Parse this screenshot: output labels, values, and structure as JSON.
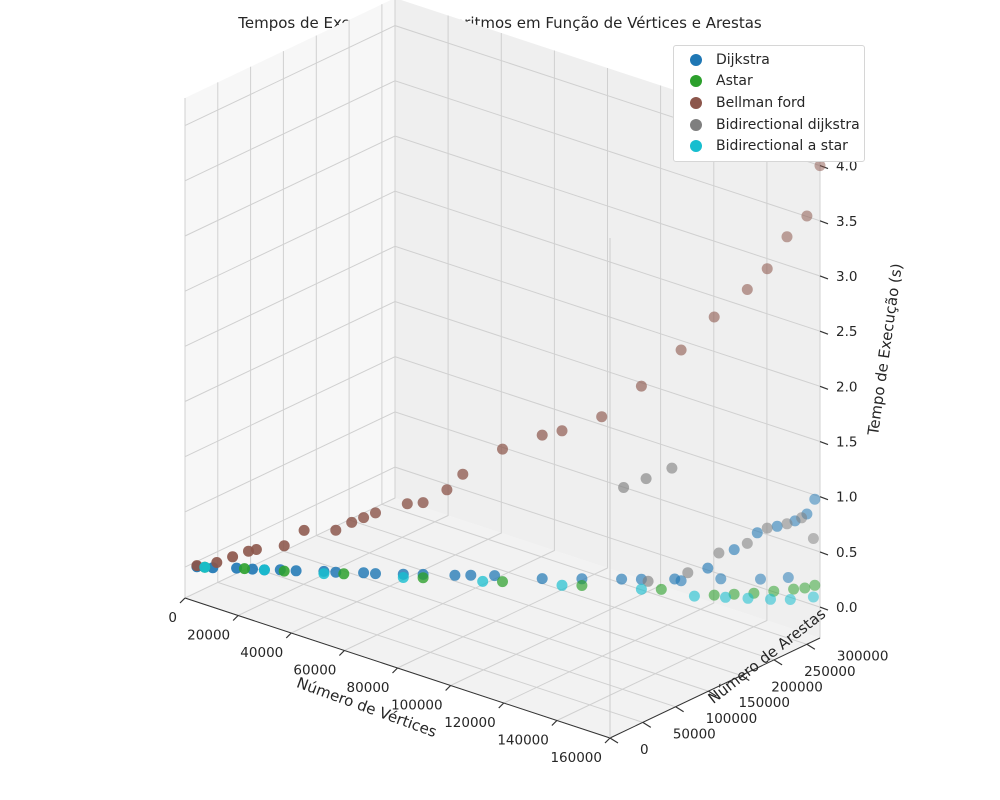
{
  "chart_data": {
    "type": "scatter",
    "projection": "3d",
    "title": "Tempos de Execução dos Algoritmos em Função de Vértices e Arestas",
    "xlabel": "Número de Vértices",
    "ylabel": "Número de Arestas",
    "zlabel": "Tempo de Execução (s)",
    "xlim": [
      0,
      160000
    ],
    "ylim": [
      0,
      320000
    ],
    "zlim": [
      0,
      4.0
    ],
    "xticks": [
      "0",
      "20000",
      "40000",
      "60000",
      "80000",
      "100000",
      "120000",
      "140000",
      "160000"
    ],
    "yticks": [
      "0",
      "50000",
      "100000",
      "150000",
      "200000",
      "250000",
      "300000"
    ],
    "zticks": [
      "0.0",
      "0.5",
      "1.0",
      "1.5",
      "2.0",
      "2.5",
      "3.0",
      "3.5",
      "4.0"
    ],
    "grid": true,
    "legend_position": "top-right",
    "series": [
      {
        "name": "Dijkstra",
        "color": "#1f77b4",
        "points": [
          [
            3000,
            6000,
            0.01
          ],
          [
            7000,
            14000,
            0.01
          ],
          [
            13000,
            26000,
            0.02
          ],
          [
            17000,
            34000,
            0.02
          ],
          [
            20000,
            40000,
            0.02
          ],
          [
            24000,
            48000,
            0.03
          ],
          [
            28000,
            56000,
            0.03
          ],
          [
            35000,
            70000,
            0.04
          ],
          [
            38000,
            76000,
            0.04
          ],
          [
            45000,
            90000,
            0.05
          ],
          [
            48000,
            96000,
            0.05
          ],
          [
            55000,
            110000,
            0.06
          ],
          [
            60000,
            120000,
            0.07
          ],
          [
            68000,
            136000,
            0.08
          ],
          [
            72000,
            144000,
            0.09
          ],
          [
            78000,
            156000,
            0.1
          ],
          [
            90000,
            180000,
            0.1
          ],
          [
            100000,
            200000,
            0.12
          ],
          [
            110000,
            220000,
            0.14
          ],
          [
            115000,
            230000,
            0.15
          ],
          [
            125000,
            250000,
            0.16
          ],
          [
            135000,
            270000,
            0.2
          ],
          [
            145000,
            290000,
            0.22
          ],
          [
            152000,
            304000,
            0.25
          ],
          [
            130000,
            220000,
            0.3
          ],
          [
            140000,
            230000,
            0.45
          ],
          [
            145000,
            250000,
            0.6
          ],
          [
            150000,
            265000,
            0.75
          ],
          [
            155000,
            275000,
            0.82
          ],
          [
            158000,
            290000,
            0.85
          ],
          [
            160000,
            300000,
            0.9
          ],
          [
            160000,
            312000,
            1.0
          ]
        ]
      },
      {
        "name": "Astar",
        "color": "#2ca02c",
        "points": [
          [
            5000,
            10000,
            0.01
          ],
          [
            15000,
            30000,
            0.02
          ],
          [
            25000,
            50000,
            0.02
          ],
          [
            40000,
            80000,
            0.03
          ],
          [
            60000,
            120000,
            0.04
          ],
          [
            80000,
            160000,
            0.05
          ],
          [
            100000,
            200000,
            0.06
          ],
          [
            120000,
            240000,
            0.07
          ],
          [
            135000,
            260000,
            0.08
          ],
          [
            140000,
            270000,
            0.1
          ],
          [
            145000,
            280000,
            0.12
          ],
          [
            150000,
            290000,
            0.15
          ],
          [
            155000,
            300000,
            0.18
          ],
          [
            158000,
            305000,
            0.2
          ],
          [
            160000,
            312000,
            0.22
          ]
        ]
      },
      {
        "name": "Bellman ford",
        "color": "#8c564b",
        "points": [
          [
            3000,
            6000,
            0.02
          ],
          [
            8000,
            16000,
            0.06
          ],
          [
            12000,
            24000,
            0.12
          ],
          [
            16000,
            32000,
            0.18
          ],
          [
            18000,
            36000,
            0.2
          ],
          [
            25000,
            50000,
            0.25
          ],
          [
            30000,
            60000,
            0.4
          ],
          [
            38000,
            76000,
            0.42
          ],
          [
            42000,
            84000,
            0.5
          ],
          [
            45000,
            90000,
            0.55
          ],
          [
            48000,
            96000,
            0.6
          ],
          [
            56000,
            112000,
            0.7
          ],
          [
            60000,
            120000,
            0.72
          ],
          [
            66000,
            132000,
            0.85
          ],
          [
            70000,
            140000,
            1.0
          ],
          [
            80000,
            160000,
            1.25
          ],
          [
            90000,
            180000,
            1.4
          ],
          [
            95000,
            190000,
            1.45
          ],
          [
            105000,
            210000,
            1.6
          ],
          [
            115000,
            230000,
            1.9
          ],
          [
            125000,
            250000,
            2.25
          ],
          [
            135000,
            260000,
            2.6
          ],
          [
            145000,
            270000,
            2.9
          ],
          [
            150000,
            280000,
            3.1
          ],
          [
            155000,
            290000,
            3.4
          ],
          [
            160000,
            300000,
            3.6
          ],
          [
            160000,
            320000,
            4.0
          ]
        ]
      },
      {
        "name": "Bidirectional dijkstra",
        "color": "#7f7f7f",
        "points": [
          [
            120000,
            220000,
            0.2
          ],
          [
            130000,
            240000,
            0.3
          ],
          [
            138000,
            255000,
            0.5
          ],
          [
            145000,
            270000,
            0.6
          ],
          [
            150000,
            280000,
            0.75
          ],
          [
            155000,
            290000,
            0.8
          ],
          [
            158000,
            300000,
            0.85
          ],
          [
            160000,
            310000,
            0.65
          ],
          [
            112000,
            215000,
            1.0
          ],
          [
            118000,
            225000,
            1.1
          ],
          [
            124000,
            240000,
            1.2
          ]
        ]
      },
      {
        "name": "Bidirectional a star",
        "color": "#17becf",
        "points": [
          [
            5000,
            10000,
            0.01
          ],
          [
            20000,
            40000,
            0.02
          ],
          [
            35000,
            70000,
            0.02
          ],
          [
            55000,
            110000,
            0.03
          ],
          [
            75000,
            150000,
            0.04
          ],
          [
            95000,
            190000,
            0.05
          ],
          [
            115000,
            230000,
            0.06
          ],
          [
            130000,
            250000,
            0.06
          ],
          [
            138000,
            265000,
            0.07
          ],
          [
            144000,
            275000,
            0.08
          ],
          [
            150000,
            285000,
            0.09
          ],
          [
            155000,
            295000,
            0.1
          ],
          [
            160000,
            310000,
            0.12
          ]
        ]
      }
    ]
  }
}
